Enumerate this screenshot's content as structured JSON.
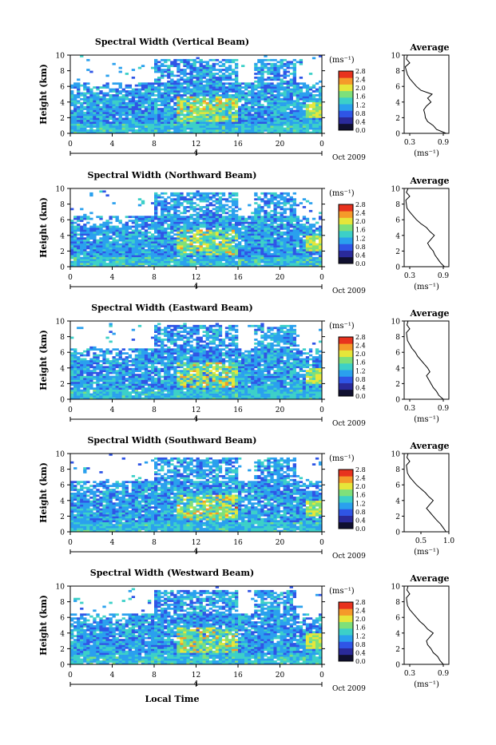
{
  "figure": {
    "xlabel": "Local Time",
    "date_label": "Oct 2009",
    "unit_label": "(ms⁻¹)",
    "colorbar_ticks": [
      "0.0",
      "0.4",
      "0.8",
      "1.2",
      "1.6",
      "2.0",
      "2.4",
      "2.8"
    ],
    "colorbar_colors": [
      "#101030",
      "#2a2a9a",
      "#2f55e6",
      "#2aa0ee",
      "#3cd0c8",
      "#7ee07a",
      "#e6e63a",
      "#f59a2a",
      "#e8321e"
    ]
  },
  "chart_data": [
    {
      "type": "heatmap",
      "title": "Spectral Width (Vertical Beam)",
      "xlabel": "",
      "ylabel": "Height (km)",
      "xlim": [
        0,
        24
      ],
      "ylim": [
        0,
        10
      ],
      "x_ticks": [
        "0",
        "4",
        "8",
        "12",
        "16",
        "20",
        "0"
      ],
      "y_ticks": [
        "0",
        "2",
        "4",
        "6",
        "8",
        "10"
      ],
      "date_tick": "4",
      "value_range": [
        0.0,
        2.8
      ],
      "average": {
        "title": "Average",
        "xlabel": "(ms⁻¹)",
        "x_ticks": [
          "0.3",
          "0.9"
        ],
        "xlim": [
          0.2,
          1.0
        ],
        "height": [
          0,
          0.5,
          1,
          1.5,
          2,
          2.5,
          3,
          3.5,
          4,
          4.5,
          5,
          5.5,
          6,
          6.5,
          7,
          7.5,
          8,
          8.5,
          9,
          9.5,
          10
        ],
        "value": [
          0.95,
          0.78,
          0.72,
          0.62,
          0.58,
          0.57,
          0.55,
          0.6,
          0.68,
          0.62,
          0.7,
          0.5,
          0.42,
          0.36,
          0.3,
          0.26,
          0.24,
          0.22,
          0.3,
          0.24,
          0.26
        ]
      }
    },
    {
      "type": "heatmap",
      "title": "Spectral Width (Northward Beam)",
      "xlabel": "",
      "ylabel": "Height (km)",
      "xlim": [
        0,
        24
      ],
      "ylim": [
        0,
        10
      ],
      "x_ticks": [
        "0",
        "4",
        "8",
        "12",
        "16",
        "20",
        "0"
      ],
      "y_ticks": [
        "0",
        "2",
        "4",
        "6",
        "8",
        "10"
      ],
      "date_tick": "4",
      "value_range": [
        0.0,
        2.8
      ],
      "average": {
        "title": "Average",
        "xlabel": "(ms⁻¹)",
        "x_ticks": [
          "0.3",
          "0.9"
        ],
        "xlim": [
          0.2,
          1.0
        ],
        "height": [
          0,
          0.5,
          1,
          1.5,
          2,
          2.5,
          3,
          3.5,
          4,
          4.5,
          5,
          5.5,
          6,
          6.5,
          7,
          7.5,
          8,
          8.5,
          9,
          9.5,
          10
        ],
        "value": [
          0.92,
          0.85,
          0.8,
          0.75,
          0.72,
          0.66,
          0.62,
          0.68,
          0.74,
          0.66,
          0.6,
          0.5,
          0.42,
          0.36,
          0.3,
          0.25,
          0.24,
          0.23,
          0.3,
          0.24,
          0.27
        ]
      }
    },
    {
      "type": "heatmap",
      "title": "Spectral Width (Eastward Beam)",
      "xlabel": "",
      "ylabel": "Height (km)",
      "xlim": [
        0,
        24
      ],
      "ylim": [
        0,
        10
      ],
      "x_ticks": [
        "0",
        "4",
        "8",
        "12",
        "16",
        "20",
        "0"
      ],
      "y_ticks": [
        "0",
        "2",
        "4",
        "6",
        "8",
        "10"
      ],
      "date_tick": "4",
      "value_range": [
        0.0,
        2.8
      ],
      "average": {
        "title": "Average",
        "xlabel": "(ms⁻¹)",
        "x_ticks": [
          "0.3",
          "0.9"
        ],
        "xlim": [
          0.2,
          1.0
        ],
        "height": [
          0,
          0.5,
          1,
          1.5,
          2,
          2.5,
          3,
          3.5,
          4,
          4.5,
          5,
          5.5,
          6,
          6.5,
          7,
          7.5,
          8,
          8.5,
          9,
          9.5,
          10
        ],
        "value": [
          0.9,
          0.82,
          0.78,
          0.72,
          0.68,
          0.64,
          0.6,
          0.66,
          0.62,
          0.56,
          0.5,
          0.44,
          0.4,
          0.34,
          0.3,
          0.26,
          0.25,
          0.24,
          0.3,
          0.25,
          0.27
        ]
      }
    },
    {
      "type": "heatmap",
      "title": "Spectral Width (Southward Beam)",
      "xlabel": "",
      "ylabel": "Height (km)",
      "xlim": [
        0,
        24
      ],
      "ylim": [
        0,
        10
      ],
      "x_ticks": [
        "0",
        "4",
        "8",
        "12",
        "16",
        "20",
        "0"
      ],
      "y_ticks": [
        "0",
        "2",
        "4",
        "6",
        "8",
        "10"
      ],
      "date_tick": "4",
      "value_range": [
        0.0,
        2.8
      ],
      "average": {
        "title": "Average",
        "xlabel": "(ms⁻¹)",
        "x_ticks": [
          "0.5",
          "1.0"
        ],
        "xlim": [
          0.2,
          1.0
        ],
        "height": [
          0,
          0.5,
          1,
          1.5,
          2,
          2.5,
          3,
          3.5,
          4,
          4.5,
          5,
          5.5,
          6,
          6.5,
          7,
          7.5,
          8,
          8.5,
          9,
          9.5,
          10
        ],
        "value": [
          0.95,
          0.9,
          0.85,
          0.78,
          0.72,
          0.66,
          0.6,
          0.66,
          0.72,
          0.64,
          0.58,
          0.5,
          0.42,
          0.36,
          0.3,
          0.26,
          0.25,
          0.24,
          0.3,
          0.25,
          0.27
        ]
      }
    },
    {
      "type": "heatmap",
      "title": "Spectral Width (Westward Beam)",
      "xlabel": "Local Time",
      "ylabel": "Height (km)",
      "xlim": [
        0,
        24
      ],
      "ylim": [
        0,
        10
      ],
      "x_ticks": [
        "0",
        "4",
        "8",
        "12",
        "16",
        "20",
        "0"
      ],
      "y_ticks": [
        "0",
        "2",
        "4",
        "6",
        "8",
        "10"
      ],
      "date_tick": "4",
      "value_range": [
        0.0,
        2.8
      ],
      "average": {
        "title": "Average",
        "xlabel": "(ms⁻¹)",
        "x_ticks": [
          "0.3",
          "0.9"
        ],
        "xlim": [
          0.2,
          1.0
        ],
        "height": [
          0,
          0.5,
          1,
          1.5,
          2,
          2.5,
          3,
          3.5,
          4,
          4.5,
          5,
          5.5,
          6,
          6.5,
          7,
          7.5,
          8,
          8.5,
          9,
          9.5,
          10
        ],
        "value": [
          0.9,
          0.84,
          0.8,
          0.72,
          0.68,
          0.62,
          0.6,
          0.66,
          0.72,
          0.62,
          0.56,
          0.48,
          0.42,
          0.36,
          0.3,
          0.26,
          0.25,
          0.24,
          0.3,
          0.25,
          0.27
        ]
      }
    }
  ]
}
